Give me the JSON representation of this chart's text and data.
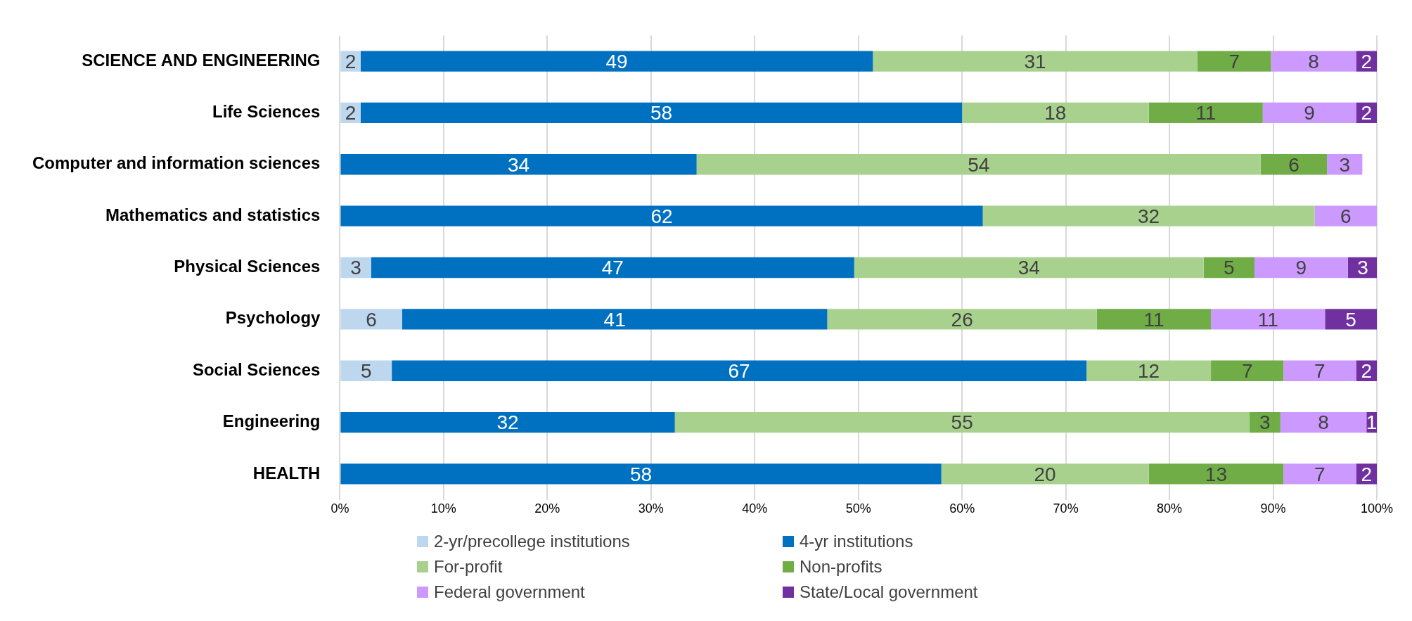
{
  "chart_data": {
    "type": "bar",
    "orientation": "horizontal",
    "stacked": true,
    "categories": [
      "SCIENCE AND ENGINEERING",
      "Life Sciences",
      "Computer and information sciences",
      "Mathematics and statistics",
      "Physical Sciences",
      "Psychology",
      "Social Sciences",
      "Engineering",
      "HEALTH"
    ],
    "series": [
      {
        "name": "2-yr/precollege institutions",
        "color": "#bdd7ee",
        "values": [
          2,
          2,
          null,
          null,
          3,
          6,
          5,
          null,
          null
        ],
        "value_labels": [
          "2",
          "2",
          null,
          null,
          "3",
          "6",
          "5",
          null,
          null
        ]
      },
      {
        "name": "4-yr institutions",
        "color": "#0070c0",
        "values": [
          49.4,
          58,
          34.4,
          62,
          46.6,
          41,
          67,
          32.3,
          58
        ],
        "value_labels": [
          "49",
          "58",
          "34",
          "62",
          "47",
          "41",
          "67",
          "32",
          "58"
        ]
      },
      {
        "name": "For-profit",
        "color": "#a9d18e",
        "values": [
          31.3,
          18,
          54.4,
          32,
          33.7,
          26,
          12,
          55.4,
          20
        ],
        "value_labels": [
          "31",
          "18",
          "54",
          "32",
          "34",
          "26",
          "12",
          "55",
          "20"
        ]
      },
      {
        "name": "Non-profits",
        "color": "#70ad47",
        "values": [
          7.1,
          11,
          6.4,
          null,
          4.9,
          11,
          7,
          3,
          13
        ],
        "value_labels": [
          "7",
          "11",
          "6",
          null,
          "5",
          "11",
          "7",
          "3",
          "13"
        ]
      },
      {
        "name": "Federal government",
        "color": "#cc99ff",
        "values": [
          8.2,
          9,
          3.4,
          6,
          9,
          11,
          7,
          8.3,
          7
        ],
        "value_labels": [
          "8",
          "9",
          "3",
          "6",
          "9",
          "11",
          "7",
          "8",
          "7"
        ]
      },
      {
        "name": "State/Local government",
        "color": "#7030a0",
        "values": [
          2,
          2,
          null,
          null,
          2.9,
          5,
          2,
          1,
          2
        ],
        "value_labels": [
          "2",
          "2",
          null,
          null,
          "3",
          "5",
          "2",
          "1",
          "2"
        ]
      }
    ],
    "xlim": [
      0,
      100
    ],
    "xticks": [
      {
        "value": 0,
        "label": "0%"
      },
      {
        "value": 10,
        "label": "10%"
      },
      {
        "value": 20,
        "label": "20%"
      },
      {
        "value": 30,
        "label": "30%"
      },
      {
        "value": 40,
        "label": "40%"
      },
      {
        "value": 50,
        "label": "50%"
      },
      {
        "value": 60,
        "label": "60%"
      },
      {
        "value": 70,
        "label": "70%"
      },
      {
        "value": 80,
        "label": "80%"
      },
      {
        "value": 90,
        "label": "90%"
      },
      {
        "value": 100,
        "label": "100%"
      }
    ],
    "grid": "x",
    "legend": "bottom"
  }
}
